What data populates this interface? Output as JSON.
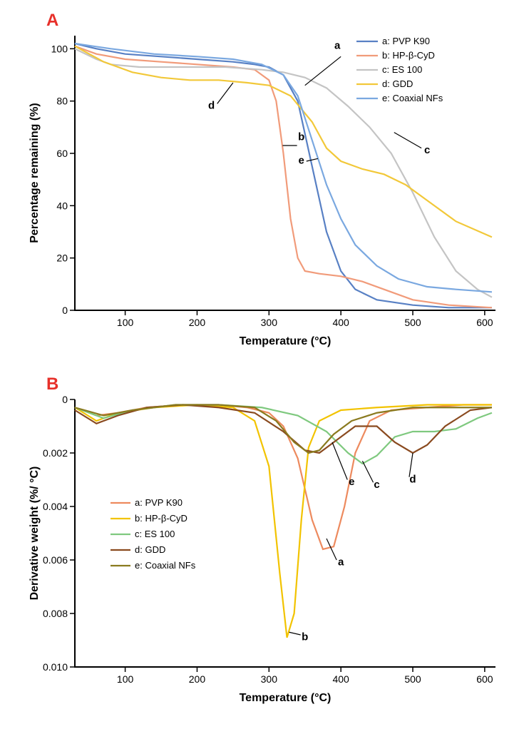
{
  "panelA": {
    "label": "A",
    "label_color": "#e7302a",
    "type": "line",
    "xlabel": "Temperature (°C)",
    "ylabel": "Percentage remaining (%)",
    "xlim": [
      30,
      615
    ],
    "ylim": [
      0,
      105
    ],
    "xticks": [
      100,
      200,
      300,
      400,
      500,
      600
    ],
    "yticks": [
      0,
      20,
      40,
      60,
      80,
      100
    ],
    "legend_pos": "top-right",
    "series": [
      {
        "id": "a",
        "name": "a: PVP K90",
        "color": "#5880c4",
        "pts": [
          [
            30,
            102
          ],
          [
            60,
            100
          ],
          [
            100,
            98
          ],
          [
            150,
            97
          ],
          [
            200,
            96
          ],
          [
            250,
            95
          ],
          [
            280,
            94
          ],
          [
            300,
            93
          ],
          [
            320,
            90
          ],
          [
            340,
            80
          ],
          [
            360,
            55
          ],
          [
            380,
            30
          ],
          [
            400,
            15
          ],
          [
            420,
            8
          ],
          [
            450,
            4
          ],
          [
            500,
            2
          ],
          [
            550,
            1
          ],
          [
            610,
            1
          ]
        ]
      },
      {
        "id": "b",
        "name": "b: HP-β-CyD",
        "color": "#f19b7a",
        "pts": [
          [
            30,
            101
          ],
          [
            60,
            98
          ],
          [
            100,
            96
          ],
          [
            150,
            95
          ],
          [
            200,
            94
          ],
          [
            250,
            93
          ],
          [
            280,
            92
          ],
          [
            300,
            88
          ],
          [
            310,
            80
          ],
          [
            320,
            60
          ],
          [
            330,
            35
          ],
          [
            340,
            20
          ],
          [
            350,
            15
          ],
          [
            370,
            14
          ],
          [
            400,
            13
          ],
          [
            430,
            11
          ],
          [
            460,
            8
          ],
          [
            500,
            4
          ],
          [
            550,
            2
          ],
          [
            610,
            1
          ]
        ]
      },
      {
        "id": "c",
        "name": "c: ES 100",
        "color": "#c4c4c4",
        "pts": [
          [
            30,
            100
          ],
          [
            60,
            96
          ],
          [
            80,
            94
          ],
          [
            120,
            93
          ],
          [
            180,
            93
          ],
          [
            240,
            93
          ],
          [
            290,
            92
          ],
          [
            320,
            91
          ],
          [
            350,
            89
          ],
          [
            380,
            85
          ],
          [
            410,
            78
          ],
          [
            440,
            70
          ],
          [
            470,
            60
          ],
          [
            500,
            45
          ],
          [
            530,
            28
          ],
          [
            560,
            15
          ],
          [
            590,
            8
          ],
          [
            610,
            5
          ]
        ]
      },
      {
        "id": "d",
        "name": "d: GDD",
        "color": "#f2c839",
        "pts": [
          [
            30,
            101
          ],
          [
            70,
            95
          ],
          [
            110,
            91
          ],
          [
            150,
            89
          ],
          [
            190,
            88
          ],
          [
            230,
            88
          ],
          [
            270,
            87
          ],
          [
            300,
            86
          ],
          [
            330,
            82
          ],
          [
            360,
            72
          ],
          [
            380,
            62
          ],
          [
            400,
            57
          ],
          [
            430,
            54
          ],
          [
            460,
            52
          ],
          [
            490,
            48
          ],
          [
            520,
            42
          ],
          [
            560,
            34
          ],
          [
            610,
            28
          ]
        ]
      },
      {
        "id": "e",
        "name": "e: Coaxial NFs",
        "color": "#7aa8e0",
        "pts": [
          [
            30,
            102
          ],
          [
            80,
            100
          ],
          [
            140,
            98
          ],
          [
            200,
            97
          ],
          [
            250,
            96
          ],
          [
            290,
            94
          ],
          [
            320,
            90
          ],
          [
            340,
            82
          ],
          [
            360,
            65
          ],
          [
            380,
            48
          ],
          [
            400,
            35
          ],
          [
            420,
            25
          ],
          [
            450,
            17
          ],
          [
            480,
            12
          ],
          [
            520,
            9
          ],
          [
            560,
            8
          ],
          [
            610,
            7
          ]
        ]
      }
    ],
    "callouts": [
      {
        "id": "a",
        "text": "a",
        "tx": 395,
        "ty": 100,
        "lx1": 400,
        "ly1": 97,
        "lx2": 350,
        "ly2": 86
      },
      {
        "id": "d",
        "text": "d",
        "tx": 220,
        "ty": 77,
        "lx1": 228,
        "ly1": 79,
        "lx2": 250,
        "ly2": 87
      },
      {
        "id": "b",
        "text": "b",
        "tx": 345,
        "ty": 65,
        "lx1": 339,
        "ly1": 63,
        "lx2": 319,
        "ly2": 63
      },
      {
        "id": "e",
        "text": "e",
        "tx": 345,
        "ty": 56,
        "lx1": 352,
        "ly1": 57,
        "lx2": 368,
        "ly2": 58
      },
      {
        "id": "c",
        "text": "c",
        "tx": 520,
        "ty": 60,
        "lx1": 512,
        "ly1": 62,
        "lx2": 474,
        "ly2": 68
      }
    ]
  },
  "panelB": {
    "label": "B",
    "label_color": "#e7302a",
    "type": "line",
    "xlabel": "Temperature (°C)",
    "ylabel": "Derivative weight (%/ °C)",
    "xlim": [
      30,
      615
    ],
    "ylim_inv": [
      0.01,
      0.0
    ],
    "xticks": [
      100,
      200,
      300,
      400,
      500,
      600
    ],
    "yticks": [
      0.0,
      0.002,
      0.004,
      0.006,
      0.008,
      0.01
    ],
    "legend_pos": "left-mid",
    "series": [
      {
        "id": "a",
        "name": "a: PVP K90",
        "color": "#ed8a5e",
        "pts": [
          [
            30,
            0.0003
          ],
          [
            60,
            0.0006
          ],
          [
            90,
            0.0005
          ],
          [
            130,
            0.0003
          ],
          [
            180,
            0.0002
          ],
          [
            230,
            0.0002
          ],
          [
            270,
            0.0003
          ],
          [
            300,
            0.0005
          ],
          [
            320,
            0.001
          ],
          [
            340,
            0.0022
          ],
          [
            360,
            0.0045
          ],
          [
            375,
            0.0056
          ],
          [
            390,
            0.0055
          ],
          [
            405,
            0.004
          ],
          [
            420,
            0.002
          ],
          [
            440,
            0.0008
          ],
          [
            470,
            0.0004
          ],
          [
            520,
            0.0003
          ],
          [
            570,
            0.0002
          ],
          [
            610,
            0.0002
          ]
        ]
      },
      {
        "id": "b",
        "name": "b: HP-β-CyD",
        "color": "#f2c300",
        "pts": [
          [
            30,
            0.0003
          ],
          [
            60,
            0.0008
          ],
          [
            90,
            0.0005
          ],
          [
            140,
            0.0003
          ],
          [
            200,
            0.0002
          ],
          [
            250,
            0.0003
          ],
          [
            280,
            0.0008
          ],
          [
            300,
            0.0025
          ],
          [
            315,
            0.0065
          ],
          [
            325,
            0.0089
          ],
          [
            335,
            0.008
          ],
          [
            345,
            0.0045
          ],
          [
            355,
            0.0018
          ],
          [
            370,
            0.0008
          ],
          [
            400,
            0.0004
          ],
          [
            450,
            0.0003
          ],
          [
            520,
            0.0002
          ],
          [
            610,
            0.0002
          ]
        ]
      },
      {
        "id": "c",
        "name": "c: ES 100",
        "color": "#7fc97f",
        "pts": [
          [
            30,
            0.0003
          ],
          [
            70,
            0.0007
          ],
          [
            110,
            0.0004
          ],
          [
            170,
            0.0002
          ],
          [
            230,
            0.0002
          ],
          [
            290,
            0.0003
          ],
          [
            340,
            0.0006
          ],
          [
            380,
            0.0012
          ],
          [
            410,
            0.002
          ],
          [
            430,
            0.0024
          ],
          [
            450,
            0.0021
          ],
          [
            475,
            0.0014
          ],
          [
            500,
            0.0012
          ],
          [
            530,
            0.0012
          ],
          [
            560,
            0.0011
          ],
          [
            590,
            0.0007
          ],
          [
            610,
            0.0005
          ]
        ]
      },
      {
        "id": "d",
        "name": "d: GDD",
        "color": "#8a4a1f",
        "pts": [
          [
            30,
            0.0004
          ],
          [
            60,
            0.0009
          ],
          [
            90,
            0.0006
          ],
          [
            130,
            0.0003
          ],
          [
            180,
            0.0002
          ],
          [
            230,
            0.0003
          ],
          [
            280,
            0.0005
          ],
          [
            320,
            0.0012
          ],
          [
            350,
            0.0019
          ],
          [
            370,
            0.002
          ],
          [
            390,
            0.0016
          ],
          [
            420,
            0.001
          ],
          [
            450,
            0.001
          ],
          [
            475,
            0.0016
          ],
          [
            500,
            0.002
          ],
          [
            520,
            0.0017
          ],
          [
            545,
            0.001
          ],
          [
            580,
            0.0004
          ],
          [
            610,
            0.0003
          ]
        ]
      },
      {
        "id": "e",
        "name": "e: Coaxial NFs",
        "color": "#8a7a1f",
        "pts": [
          [
            30,
            0.0003
          ],
          [
            70,
            0.0006
          ],
          [
            110,
            0.0004
          ],
          [
            170,
            0.0002
          ],
          [
            230,
            0.0002
          ],
          [
            280,
            0.0003
          ],
          [
            310,
            0.0008
          ],
          [
            335,
            0.0016
          ],
          [
            355,
            0.002
          ],
          [
            370,
            0.0019
          ],
          [
            390,
            0.0013
          ],
          [
            415,
            0.0008
          ],
          [
            450,
            0.0005
          ],
          [
            500,
            0.0003
          ],
          [
            560,
            0.0003
          ],
          [
            610,
            0.0003
          ]
        ]
      }
    ],
    "callouts": [
      {
        "id": "a",
        "text": "a",
        "tx": 400,
        "ty": 0.0062,
        "lx1": 394,
        "ly1": 0.006,
        "lx2": 380,
        "ly2": 0.0052
      },
      {
        "id": "b",
        "text": "b",
        "tx": 350,
        "ty": 0.009,
        "lx1": 344,
        "ly1": 0.0088,
        "lx2": 328,
        "ly2": 0.0087
      },
      {
        "id": "e",
        "text": "e",
        "tx": 415,
        "ty": 0.0032,
        "lx1": 409,
        "ly1": 0.003,
        "lx2": 388,
        "ly2": 0.0016
      },
      {
        "id": "c",
        "text": "c",
        "tx": 450,
        "ty": 0.0033,
        "lx1": 445,
        "ly1": 0.0031,
        "lx2": 430,
        "ly2": 0.0023
      },
      {
        "id": "d",
        "text": "d",
        "tx": 500,
        "ty": 0.0031,
        "lx1": 495,
        "ly1": 0.0029,
        "lx2": 500,
        "ly2": 0.002
      }
    ]
  }
}
